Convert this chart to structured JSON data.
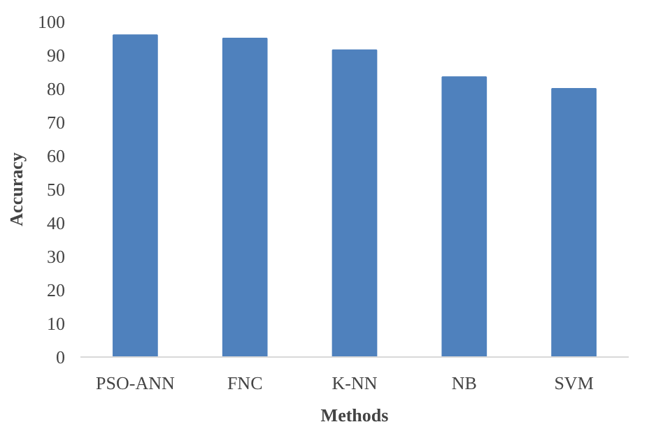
{
  "chart_data": {
    "type": "bar",
    "xlabel": "Methods",
    "ylabel": "Accuracy",
    "categories": [
      "PSO-ANN",
      "FNC",
      "K-NN",
      "NB",
      "SVM"
    ],
    "values": [
      96,
      95,
      91.5,
      83.5,
      80
    ],
    "color": "#4f81bd",
    "ylim": [
      0,
      100
    ],
    "yticks": [
      0,
      10,
      20,
      30,
      40,
      50,
      60,
      70,
      80,
      90,
      100
    ],
    "grid": false
  }
}
